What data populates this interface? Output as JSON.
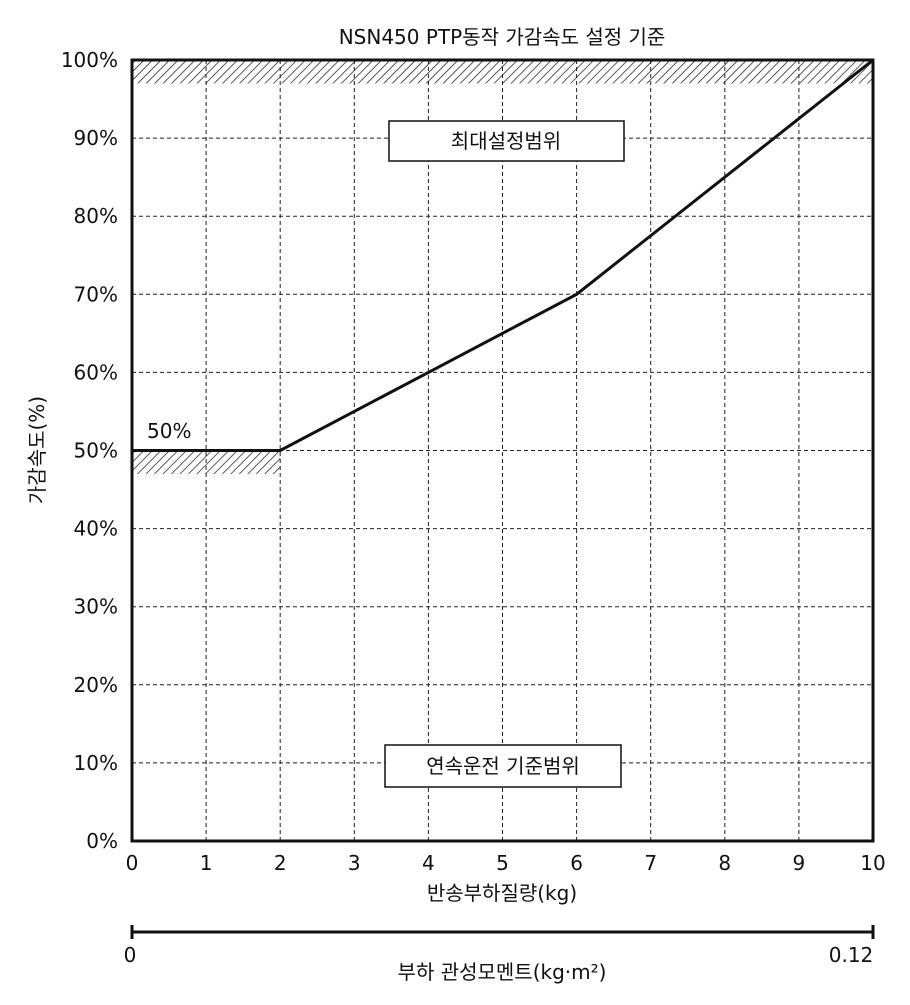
{
  "chart_data": {
    "type": "line",
    "title": "NSN450 PTP동작 가감속도 설정 기준",
    "xlabel": "반송부하질량(kg)",
    "ylabel": "가감속도(%)",
    "x_ticks": [
      "0",
      "1",
      "2",
      "3",
      "4",
      "5",
      "6",
      "7",
      "8",
      "9",
      "10"
    ],
    "y_ticks": [
      "0%",
      "10%",
      "20%",
      "30%",
      "40%",
      "50%",
      "60%",
      "70%",
      "80%",
      "90%",
      "100%"
    ],
    "xlim": [
      0,
      10
    ],
    "ylim": [
      0,
      100
    ],
    "grid": true,
    "series": [
      {
        "x": [
          0,
          2,
          4,
          6,
          10
        ],
        "y": [
          50,
          50,
          60,
          70,
          100
        ]
      }
    ],
    "annotations": {
      "max_range_label": "최대설정범위",
      "continuous_range_label": "연속운전 기준범위",
      "min_value_label": "50%"
    },
    "hatch_regions": [
      {
        "x": [
          0,
          10
        ],
        "y": [
          97,
          100
        ]
      },
      {
        "x": [
          0,
          2
        ],
        "y": [
          47,
          50
        ]
      }
    ],
    "secondary_axis": {
      "label": "부하 관성모멘트(kg·m²)",
      "min_label": "0",
      "max_label": "0.12",
      "range": [
        0,
        0.12
      ]
    }
  }
}
